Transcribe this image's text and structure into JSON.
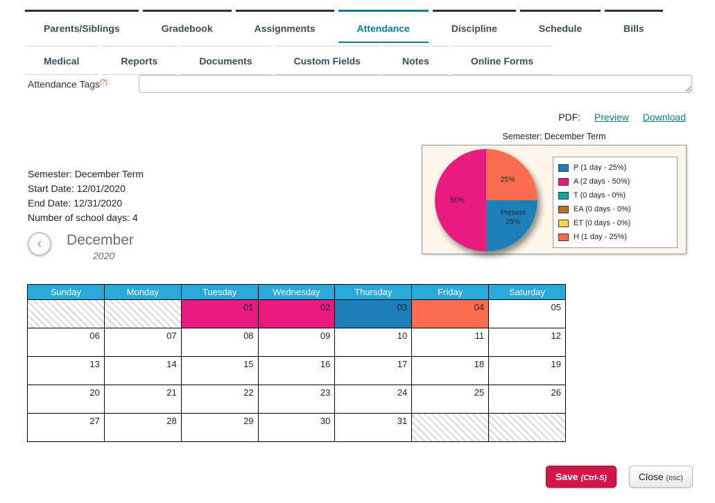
{
  "tabs": {
    "row1": [
      {
        "label": "Parents/Siblings",
        "active": false
      },
      {
        "label": "Gradebook",
        "active": false
      },
      {
        "label": "Assignments",
        "active": false
      },
      {
        "label": "Attendance",
        "active": true
      },
      {
        "label": "Discipline",
        "active": false
      },
      {
        "label": "Schedule",
        "active": false
      },
      {
        "label": "Bills",
        "active": false
      }
    ],
    "row2": [
      {
        "label": "Medical"
      },
      {
        "label": "Reports"
      },
      {
        "label": "Documents"
      },
      {
        "label": "Custom Fields"
      },
      {
        "label": "Notes"
      },
      {
        "label": "Online Forms"
      }
    ]
  },
  "attendance_tags": {
    "label": "Attendance Tags",
    "help_marker": "(?)",
    "value": ""
  },
  "pdf": {
    "label": "PDF:",
    "preview": "Preview",
    "download": "Download"
  },
  "semester_info": {
    "semester": "Semester: December Term",
    "start": "Start Date: 12/01/2020",
    "end": "End Date: 12/31/2020",
    "days": "Number of school days: 4"
  },
  "month_nav": {
    "prev": "‹",
    "month": "December",
    "year": "2020"
  },
  "chart_data": {
    "type": "pie",
    "title": "Semester: December Term",
    "slices": [
      {
        "code": "H",
        "label": "25%",
        "value": 25,
        "color": "#fb6d51"
      },
      {
        "code": "P",
        "label": "Present 25%",
        "value": 25,
        "color": "#1d7fb8"
      },
      {
        "code": "A",
        "label": "50%",
        "value": 50,
        "color": "#e81c7f"
      }
    ],
    "legend": [
      {
        "label": "P (1 day - 25%)",
        "color": "#1d7fb8"
      },
      {
        "label": "A (2 days - 50%)",
        "color": "#e81c7f"
      },
      {
        "label": "T (0 days - 0%)",
        "color": "#00a8a0"
      },
      {
        "label": "EA (0 days - 0%)",
        "color": "#bf6b2e"
      },
      {
        "label": "ET (0 days - 0%)",
        "color": "#ffd44f"
      },
      {
        "label": "H (1 day - 25%)",
        "color": "#fb6d51"
      }
    ],
    "legend_position": "right"
  },
  "calendar": {
    "headers": [
      "Sunday",
      "Monday",
      "Tuesday",
      "Wednesday",
      "Thursday",
      "Friday",
      "Saturday"
    ],
    "status_colors": {
      "A": "#e81c7f",
      "P": "#1d7fb8",
      "H": "#fb6d51"
    },
    "weeks": [
      [
        {
          "t": "x"
        },
        {
          "t": "x"
        },
        {
          "d": "01",
          "s": "A"
        },
        {
          "d": "02",
          "s": "A"
        },
        {
          "d": "03",
          "s": "P"
        },
        {
          "d": "04",
          "s": "H"
        },
        {
          "d": "05"
        }
      ],
      [
        {
          "d": "06"
        },
        {
          "d": "07"
        },
        {
          "d": "08"
        },
        {
          "d": "09"
        },
        {
          "d": "10"
        },
        {
          "d": "11"
        },
        {
          "d": "12"
        }
      ],
      [
        {
          "d": "13"
        },
        {
          "d": "14"
        },
        {
          "d": "15"
        },
        {
          "d": "16"
        },
        {
          "d": "17"
        },
        {
          "d": "18"
        },
        {
          "d": "19"
        }
      ],
      [
        {
          "d": "20"
        },
        {
          "d": "21"
        },
        {
          "d": "22"
        },
        {
          "d": "23"
        },
        {
          "d": "24"
        },
        {
          "d": "25"
        },
        {
          "d": "26"
        }
      ],
      [
        {
          "d": "27"
        },
        {
          "d": "28"
        },
        {
          "d": "29"
        },
        {
          "d": "30"
        },
        {
          "d": "31"
        },
        {
          "t": "x"
        },
        {
          "t": "x"
        }
      ]
    ]
  },
  "footer": {
    "save": "Save",
    "save_hint": "(Ctrl-S)",
    "close": "Close",
    "close_hint": "(esc)"
  }
}
